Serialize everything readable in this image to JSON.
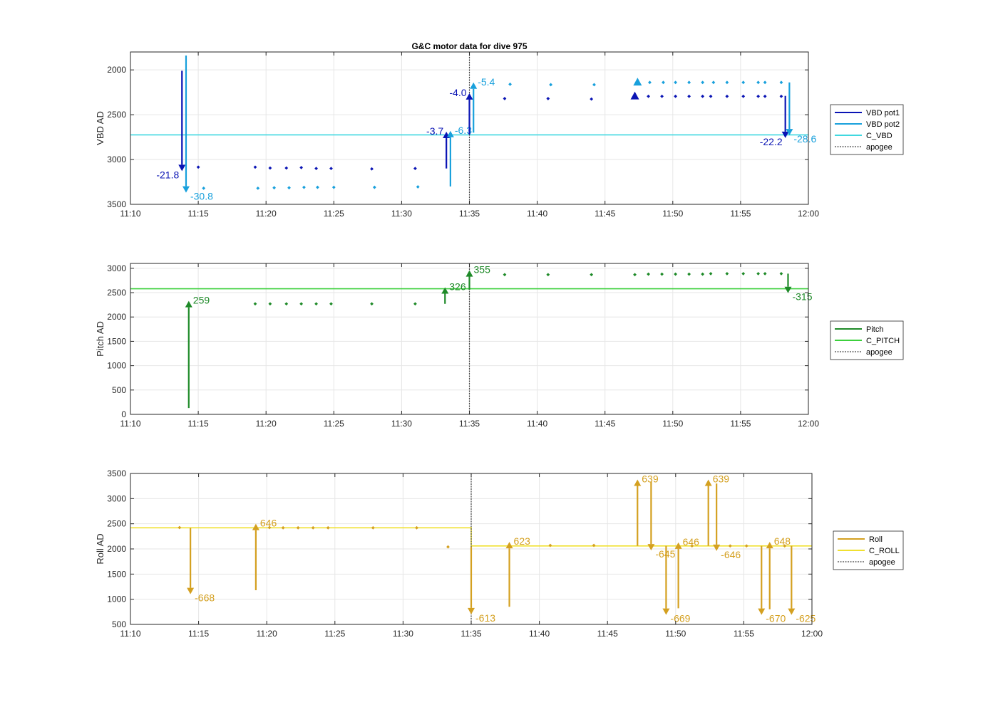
{
  "colors": {
    "vbd_pot1": "#0a14b4",
    "vbd_pot2": "#18a0dc",
    "c_vbd": "#40d8e0",
    "pitch": "#1e8a28",
    "c_pitch": "#3cd03c",
    "roll": "#d4a020",
    "c_roll": "#f0e030",
    "apogee": "#444444",
    "grid": "#e6e6e6",
    "axis": "#262626"
  },
  "chart_data": [
    {
      "type": "scatter",
      "title": "G&C motor data for dive 975",
      "ylabel": "VBD AD",
      "xlabel": "",
      "xlim": [
        "11:10",
        "12:00"
      ],
      "ylim": [
        3500,
        1800
      ],
      "y_reversed": true,
      "xticks": [
        "11:10",
        "11:15",
        "11:20",
        "11:25",
        "11:30",
        "11:35",
        "11:40",
        "11:45",
        "11:50",
        "11:55",
        "12:00"
      ],
      "yticks": [
        2000,
        2500,
        3000,
        3500
      ],
      "grid": true,
      "legend": {
        "placement": "outside-right",
        "entries": [
          "VBD pot1",
          "VBD pot2",
          "C_VBD",
          "apogee"
        ]
      },
      "series": [
        {
          "name": "VBD pot1",
          "x": [
            "11:15.0",
            "11:19.2",
            "11:20.3",
            "11:21.5",
            "11:22.6",
            "11:23.7",
            "11:24.8",
            "11:27.8",
            "11:31.0",
            "11:37.6",
            "11:40.8",
            "11:44.0",
            "11:48.2",
            "11:49.2",
            "11:50.2",
            "11:51.2",
            "11:52.2",
            "11:52.8",
            "11:54.0",
            "11:55.2",
            "11:56.3",
            "11:56.8",
            "11:58.0"
          ],
          "y": [
            3085,
            3085,
            3095,
            3095,
            3090,
            3100,
            3100,
            3105,
            3100,
            2320,
            2320,
            2325,
            2295,
            2295,
            2295,
            2295,
            2295,
            2295,
            2295,
            2295,
            2295,
            2295,
            2295
          ]
        },
        {
          "name": "VBD pot2",
          "x": [
            "11:15.4",
            "11:19.4",
            "11:20.6",
            "11:21.7",
            "11:22.8",
            "11:23.8",
            "11:25.0",
            "11:28.0",
            "11:31.2",
            "11:38.0",
            "11:41.0",
            "11:44.2",
            "11:48.3",
            "11:49.3",
            "11:50.2",
            "11:51.2",
            "11:52.2",
            "11:53.0",
            "11:54.0",
            "11:55.2",
            "11:56.3",
            "11:56.8",
            "11:58.0"
          ],
          "y": [
            3320,
            3320,
            3315,
            3315,
            3310,
            3310,
            3310,
            3310,
            3305,
            2160,
            2165,
            2165,
            2140,
            2140,
            2140,
            2140,
            2140,
            2140,
            2140,
            2140,
            2140,
            2140,
            2140
          ]
        },
        {
          "name": "C_VBD",
          "x": [
            "11:10",
            "12:00"
          ],
          "y": [
            2725,
            2725
          ]
        }
      ],
      "markers": [
        {
          "series": "VBD pot1",
          "x": "11:47.2",
          "y": 2290,
          "shape": "triangle"
        },
        {
          "series": "VBD pot2",
          "x": "11:47.4",
          "y": 2135,
          "shape": "triangle"
        }
      ],
      "moves": [
        {
          "series": "VBD pot1",
          "x": "11:13.8",
          "from": 2010,
          "to": 3130,
          "label": "-21.8",
          "label_side": "left"
        },
        {
          "series": "VBD pot2",
          "x": "11:14.1",
          "from": 1840,
          "to": 3370,
          "label": "-30.8",
          "label_side": "right"
        },
        {
          "series": "VBD pot1",
          "x": "11:33.3",
          "from": 3100,
          "to": 2690,
          "label": "-3.7",
          "label_side": "left"
        },
        {
          "series": "VBD pot2",
          "x": "11:33.6",
          "from": 3300,
          "to": 2680,
          "label": "-6.3",
          "label_side": "right"
        },
        {
          "series": "VBD pot1",
          "x": "11:35.0",
          "from": 2720,
          "to": 2260,
          "label": "-4.0",
          "label_side": "left"
        },
        {
          "series": "VBD pot2",
          "x": "11:35.3",
          "from": 2700,
          "to": 2140,
          "label": "-5.4",
          "label_side": "right"
        },
        {
          "series": "VBD pot1",
          "x": "11:58.3",
          "from": 2290,
          "to": 2760,
          "label": "-22.2",
          "label_side": "left"
        },
        {
          "series": "VBD pot2",
          "x": "11:58.6",
          "from": 2140,
          "to": 2730,
          "label": "-28.6",
          "label_side": "right"
        }
      ],
      "apogee": "11:35.0"
    },
    {
      "type": "scatter",
      "title": "",
      "ylabel": "Pitch AD",
      "xlabel": "",
      "xlim": [
        "11:10",
        "12:00"
      ],
      "ylim": [
        0,
        3100
      ],
      "xticks": [
        "11:10",
        "11:15",
        "11:20",
        "11:25",
        "11:30",
        "11:35",
        "11:40",
        "11:45",
        "11:50",
        "11:55",
        "12:00"
      ],
      "yticks": [
        0,
        500,
        1000,
        1500,
        2000,
        2500,
        3000
      ],
      "grid": true,
      "legend": {
        "placement": "outside-right",
        "entries": [
          "Pitch",
          "C_PITCH",
          "apogee"
        ]
      },
      "series": [
        {
          "name": "Pitch",
          "x": [
            "11:19.2",
            "11:20.3",
            "11:21.5",
            "11:22.6",
            "11:23.7",
            "11:24.8",
            "11:27.8",
            "11:31.0",
            "11:37.6",
            "11:40.8",
            "11:44.0",
            "11:47.2",
            "11:48.2",
            "11:49.2",
            "11:50.2",
            "11:51.2",
            "11:52.2",
            "11:52.8",
            "11:54.0",
            "11:55.2",
            "11:56.3",
            "11:56.8",
            "11:58.0"
          ],
          "y": [
            2270,
            2270,
            2270,
            2270,
            2270,
            2270,
            2270,
            2270,
            2870,
            2870,
            2870,
            2870,
            2880,
            2880,
            2880,
            2880,
            2880,
            2890,
            2890,
            2890,
            2890,
            2890,
            2890
          ]
        },
        {
          "name": "C_PITCH",
          "x": [
            "11:10",
            "12:00"
          ],
          "y": [
            2580,
            2580
          ]
        }
      ],
      "moves": [
        {
          "series": "Pitch",
          "x": "11:14.3",
          "from": 130,
          "to": 2330,
          "label": "259",
          "label_side": "right"
        },
        {
          "series": "Pitch",
          "x": "11:33.2",
          "from": 2270,
          "to": 2610,
          "label": "326",
          "label_side": "right"
        },
        {
          "series": "Pitch",
          "x": "11:35.0",
          "from": 2560,
          "to": 2960,
          "label": "355",
          "label_side": "right"
        },
        {
          "series": "Pitch",
          "x": "11:58.5",
          "from": 2890,
          "to": 2490,
          "label": "-315",
          "label_side": "right"
        }
      ],
      "apogee": "11:35.0"
    },
    {
      "type": "scatter",
      "title": "",
      "ylabel": "Roll AD",
      "xlabel": "",
      "xlim": [
        "11:10",
        "12:00"
      ],
      "ylim": [
        500,
        3500
      ],
      "xticks": [
        "11:10",
        "11:15",
        "11:20",
        "11:25",
        "11:30",
        "11:35",
        "11:40",
        "11:45",
        "11:50",
        "11:55",
        "12:00"
      ],
      "yticks": [
        500,
        1000,
        1500,
        2000,
        2500,
        3000,
        3500
      ],
      "grid": true,
      "legend": {
        "placement": "outside-right",
        "entries": [
          "Roll",
          "C_ROLL",
          "apogee"
        ]
      },
      "series": [
        {
          "name": "Roll",
          "x": [
            "11:13.6",
            "11:20.2",
            "11:21.2",
            "11:22.3",
            "11:23.4",
            "11:24.5",
            "11:27.8",
            "11:31.0",
            "11:33.3",
            "11:40.8",
            "11:44.0",
            "11:51.2",
            "11:54.0",
            "11:55.2",
            "11:58.0"
          ],
          "y": [
            2425,
            2425,
            2420,
            2420,
            2420,
            2420,
            2420,
            2420,
            2040,
            2070,
            2070,
            2060,
            2060,
            2060,
            2060
          ]
        },
        {
          "name": "C_ROLL",
          "x": [
            "11:10",
            "11:35.0",
            "11:35.0",
            "12:00"
          ],
          "y": [
            2420,
            2420,
            2060,
            2060
          ]
        }
      ],
      "moves": [
        {
          "series": "Roll",
          "x": "11:14.4",
          "from": 2420,
          "to": 1100,
          "label": "-668",
          "label_side": "right"
        },
        {
          "series": "Roll",
          "x": "11:19.2",
          "from": 1180,
          "to": 2500,
          "label": "646",
          "label_side": "right"
        },
        {
          "series": "Roll",
          "x": "11:35.0",
          "from": 2040,
          "to": 700,
          "label": "-613",
          "label_side": "right"
        },
        {
          "series": "Roll",
          "x": "11:37.8",
          "from": 850,
          "to": 2140,
          "label": "623",
          "label_side": "right"
        },
        {
          "series": "Roll",
          "x": "11:47.2",
          "from": 2060,
          "to": 3380,
          "label": "639",
          "label_side": "right"
        },
        {
          "series": "Roll",
          "x": "11:48.2",
          "from": 3330,
          "to": 1970,
          "label": "-645",
          "label_side": "right"
        },
        {
          "series": "Roll",
          "x": "11:49.3",
          "from": 2060,
          "to": 690,
          "label": "-669",
          "label_side": "right"
        },
        {
          "series": "Roll",
          "x": "11:50.2",
          "from": 820,
          "to": 2130,
          "label": "646",
          "label_side": "right"
        },
        {
          "series": "Roll",
          "x": "11:52.4",
          "from": 2060,
          "to": 3380,
          "label": "639",
          "label_side": "right"
        },
        {
          "series": "Roll",
          "x": "11:53.0",
          "from": 3300,
          "to": 1960,
          "label": "-646",
          "label_side": "right"
        },
        {
          "series": "Roll",
          "x": "11:56.3",
          "from": 2060,
          "to": 690,
          "label": "-670",
          "label_side": "right"
        },
        {
          "series": "Roll",
          "x": "11:56.9",
          "from": 800,
          "to": 2140,
          "label": "648",
          "label_side": "right"
        },
        {
          "series": "Roll",
          "x": "11:58.5",
          "from": 2060,
          "to": 690,
          "label": "-625",
          "label_side": "right"
        }
      ],
      "apogee": "11:35.0"
    }
  ]
}
